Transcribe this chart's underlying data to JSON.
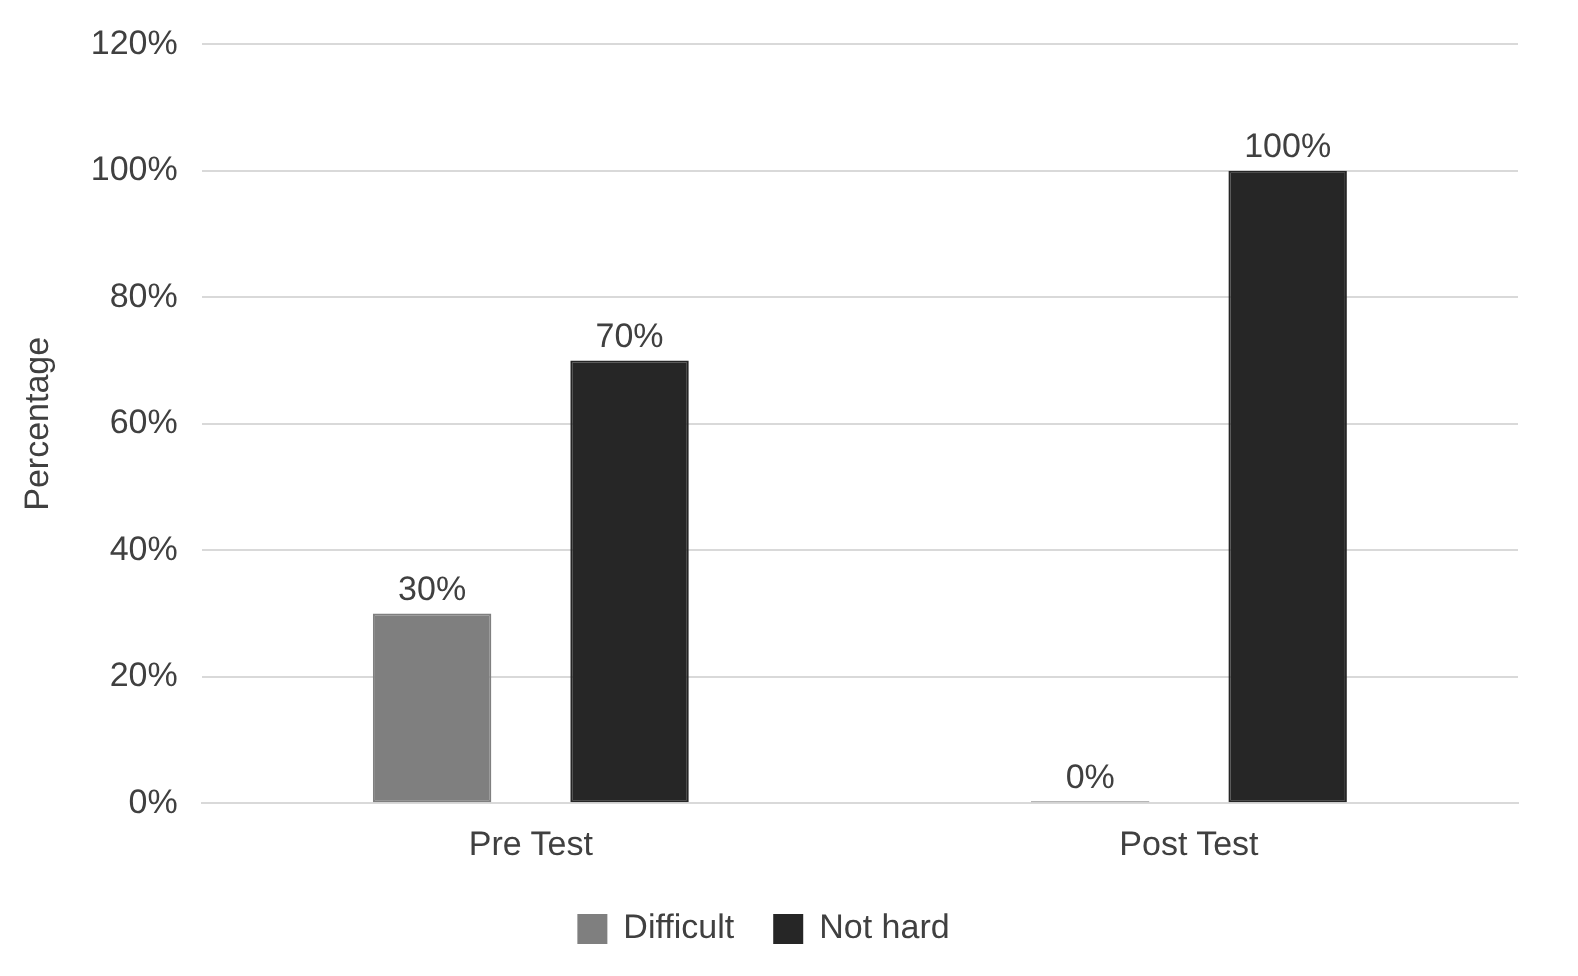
{
  "chart_data": {
    "type": "bar",
    "ylabel": "Percentage",
    "categories": [
      "Pre Test",
      "Post Test"
    ],
    "series": [
      {
        "name": "Difficult",
        "color": "#7f7f7f",
        "values": [
          30,
          0
        ],
        "value_labels": [
          "30%",
          "0%"
        ]
      },
      {
        "name": "Not hard",
        "color": "#262626",
        "values": [
          70,
          100
        ],
        "value_labels": [
          "70%",
          "100%"
        ]
      }
    ],
    "ylim": [
      0,
      120
    ],
    "yticks": [
      {
        "value": 0,
        "label": "0%"
      },
      {
        "value": 20,
        "label": "20%"
      },
      {
        "value": 40,
        "label": "40%"
      },
      {
        "value": 60,
        "label": "60%"
      },
      {
        "value": 80,
        "label": "80%"
      },
      {
        "value": 100,
        "label": "100%"
      },
      {
        "value": 120,
        "label": "120%"
      }
    ],
    "grid": "y",
    "legend": "bottom"
  }
}
